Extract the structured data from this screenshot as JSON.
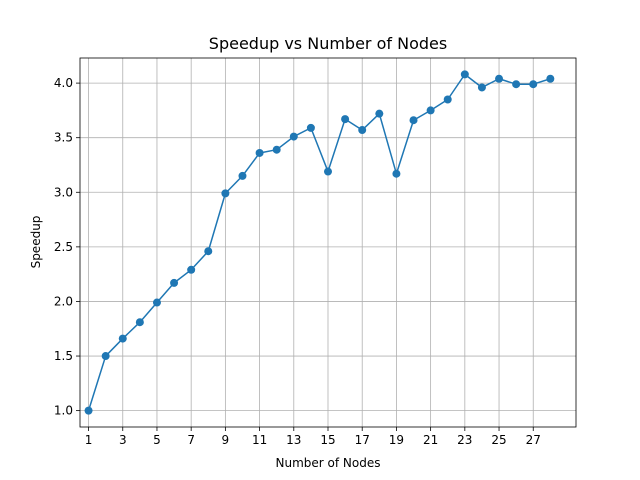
{
  "chart_data": {
    "type": "line",
    "title": "Speedup vs Number of Nodes",
    "xlabel": "Number of Nodes",
    "ylabel": "Speedup",
    "xlim": [
      0.5,
      29.5
    ],
    "ylim": [
      0.85,
      4.23
    ],
    "xticks": [
      1,
      3,
      5,
      7,
      9,
      11,
      13,
      15,
      17,
      19,
      21,
      23,
      25,
      27
    ],
    "yticks": [
      1.0,
      1.5,
      2.0,
      2.5,
      3.0,
      3.5,
      4.0
    ],
    "ytick_labels": [
      "1.0",
      "1.5",
      "2.0",
      "2.5",
      "3.0",
      "3.5",
      "4.0"
    ],
    "grid": true,
    "series": [
      {
        "color": "#1f77b4",
        "marker": "circle",
        "x": [
          1,
          2,
          3,
          4,
          5,
          6,
          7,
          8,
          9,
          10,
          11,
          12,
          13,
          14,
          15,
          16,
          17,
          18,
          19,
          20,
          21,
          22,
          23,
          24,
          25,
          26,
          27,
          28
        ],
        "y": [
          1.0,
          1.5,
          1.66,
          1.81,
          1.99,
          2.17,
          2.29,
          2.46,
          2.99,
          3.15,
          3.36,
          3.39,
          3.51,
          3.59,
          3.19,
          3.67,
          3.57,
          3.72,
          3.17,
          3.66,
          3.75,
          3.85,
          4.08,
          3.96,
          4.04,
          3.99,
          3.99,
          4.04
        ]
      }
    ]
  }
}
